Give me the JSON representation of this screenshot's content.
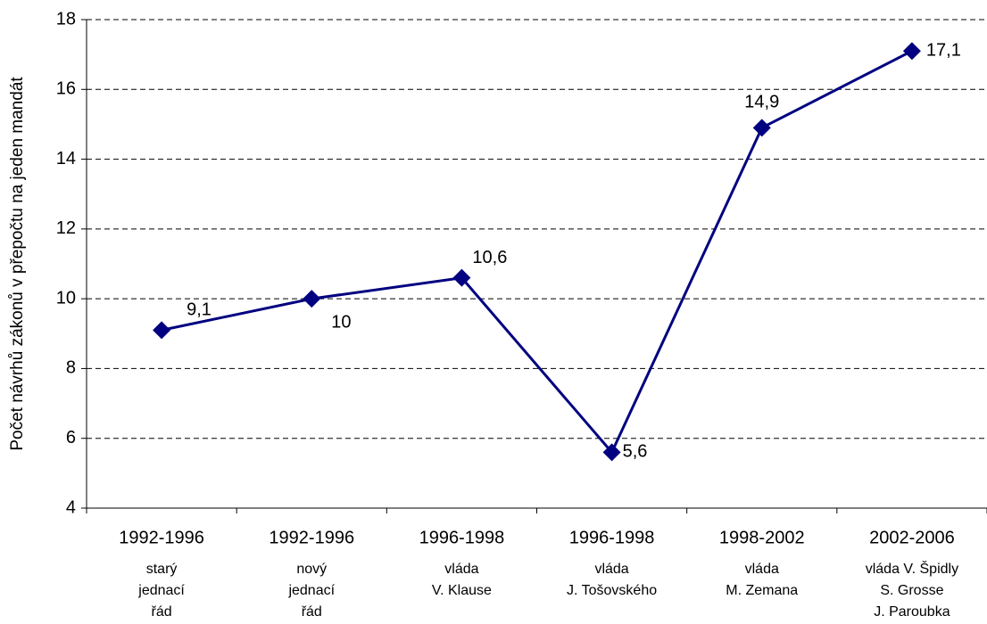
{
  "chart_data": {
    "type": "line",
    "y_axis_label": "Počet návrhů zákonů v přepočtu na jeden mandát",
    "categories": [
      "1992-1996",
      "1992-1996",
      "1996-1998",
      "1996-1998",
      "1998-2002",
      "2002-2006"
    ],
    "category_descriptions": [
      [
        "starý",
        "jednací",
        "řád"
      ],
      [
        "nový",
        "jednací",
        "řád"
      ],
      [
        "vláda",
        "V. Klause"
      ],
      [
        "vláda",
        "J. Tošovského"
      ],
      [
        "vláda",
        "M. Zemana"
      ],
      [
        "vláda V. Špidly",
        "S. Grosse",
        "J. Paroubka"
      ]
    ],
    "values": [
      9.1,
      10,
      10.6,
      5.6,
      14.9,
      17.1
    ],
    "value_labels": [
      "9,1",
      "10",
      "10,6",
      "5,6",
      "14,9",
      "17,1"
    ],
    "color": "#000080",
    "ylim": [
      4,
      18
    ],
    "yticks": [
      4,
      6,
      8,
      10,
      12,
      14,
      16,
      18
    ],
    "grid": true
  }
}
